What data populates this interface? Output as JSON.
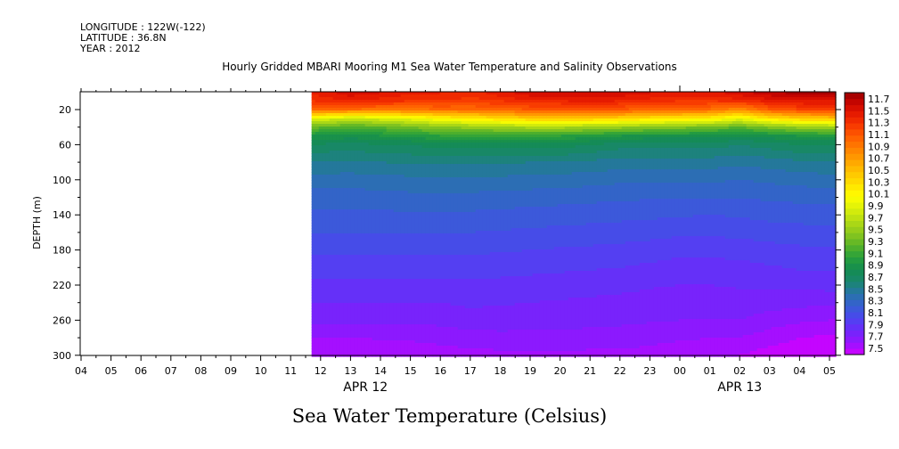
{
  "header": {
    "longitude": "LONGITUDE : 122W(-122)",
    "latitude": "LATITUDE : 36.8N",
    "year": "YEAR : 2012"
  },
  "title": "Hourly Gridded MBARI Mooring M1 Sea Water Temperature and Salinity Observations",
  "bottom_title": "Sea Water Temperature (Celsius)",
  "chart_data": {
    "type": "heatmap",
    "title": "Hourly Gridded MBARI Mooring M1 Sea Water Temperature and Salinity Observations",
    "colorbar_label": "Sea Water Temperature (Celsius)",
    "ylabel": "DEPTH (m)",
    "xlabel": "",
    "y_axis_reversed": true,
    "ylim": [
      300,
      2
    ],
    "y_ticks": [
      20,
      60,
      100,
      140,
      180,
      220,
      260,
      300
    ],
    "x_ticks": [
      "04",
      "05",
      "06",
      "07",
      "08",
      "09",
      "10",
      "11",
      "12",
      "13",
      "14",
      "15",
      "16",
      "17",
      "18",
      "19",
      "20",
      "21",
      "22",
      "23",
      "00",
      "01",
      "02",
      "03",
      "04",
      "05"
    ],
    "date_labels": [
      {
        "label": "APR 12",
        "at_tick": 9.5
      },
      {
        "label": "APR 13",
        "at_tick": 22
      }
    ],
    "data_start_hour_index": 7.7,
    "colorbar_levels": [
      7.5,
      7.6,
      7.7,
      7.8,
      7.9,
      8.0,
      8.1,
      8.2,
      8.3,
      8.4,
      8.5,
      8.6,
      8.7,
      8.8,
      8.9,
      9.0,
      9.1,
      9.2,
      9.3,
      9.4,
      9.5,
      9.6,
      9.7,
      9.8,
      9.9,
      10.0,
      10.1,
      10.2,
      10.3,
      10.4,
      10.5,
      10.6,
      10.7,
      10.8,
      10.9,
      11.0,
      11.1,
      11.2,
      11.3,
      11.4,
      11.5,
      11.6,
      11.7,
      11.8
    ],
    "colorbar_labels": [
      "11.7",
      "11.5",
      "11.3",
      "11.1",
      "10.9",
      "10.7",
      "10.5",
      "10.3",
      "10.1",
      "9.9",
      "9.7",
      "9.5",
      "9.3",
      "9.1",
      "8.9",
      "8.7",
      "8.5",
      "8.3",
      "8.1",
      "7.9",
      "7.7",
      "7.5"
    ],
    "depths": [
      2,
      10,
      20,
      30,
      40,
      50,
      60,
      80,
      100,
      120,
      140,
      160,
      180,
      200,
      220,
      240,
      260,
      280,
      300
    ],
    "hours": [
      7.7,
      9,
      10,
      11,
      12,
      13,
      14,
      15,
      16,
      17,
      18,
      19,
      20,
      21,
      22,
      23,
      24,
      25
    ],
    "temperatures": [
      [
        11.4,
        11.55,
        11.5,
        11.4,
        11.4,
        11.35,
        11.45,
        11.55,
        11.55,
        11.6,
        11.55,
        11.5,
        11.45,
        11.45,
        11.55,
        11.65,
        11.75,
        11.75
      ],
      [
        11.3,
        11.4,
        11.35,
        11.3,
        11.3,
        11.25,
        11.3,
        11.4,
        11.4,
        11.45,
        11.4,
        11.35,
        11.3,
        11.3,
        11.35,
        11.45,
        11.5,
        11.5
      ],
      [
        11.0,
        11.0,
        10.95,
        10.95,
        11.0,
        11.0,
        11.05,
        11.1,
        11.1,
        11.15,
        11.1,
        11.05,
        11.05,
        11.0,
        10.8,
        11.1,
        11.2,
        11.25
      ],
      [
        10.0,
        9.8,
        9.9,
        10.0,
        10.15,
        10.25,
        10.35,
        10.45,
        10.45,
        10.45,
        10.4,
        10.3,
        10.25,
        10.2,
        10.0,
        10.3,
        10.45,
        10.5
      ],
      [
        9.35,
        9.25,
        9.3,
        9.4,
        9.5,
        9.55,
        9.6,
        9.65,
        9.65,
        9.6,
        9.55,
        9.5,
        9.45,
        9.4,
        9.3,
        9.45,
        9.55,
        9.6
      ],
      [
        9.0,
        8.95,
        9.0,
        9.05,
        9.1,
        9.1,
        9.1,
        9.1,
        9.1,
        9.05,
        9.0,
        8.95,
        8.95,
        8.95,
        8.9,
        8.95,
        9.0,
        9.05
      ],
      [
        8.8,
        8.75,
        8.8,
        8.8,
        8.85,
        8.85,
        8.85,
        8.85,
        8.85,
        8.8,
        8.75,
        8.75,
        8.75,
        8.75,
        8.7,
        8.75,
        8.8,
        8.8
      ],
      [
        8.6,
        8.58,
        8.6,
        8.62,
        8.62,
        8.62,
        8.62,
        8.6,
        8.6,
        8.58,
        8.55,
        8.55,
        8.55,
        8.55,
        8.52,
        8.55,
        8.58,
        8.6
      ],
      [
        8.45,
        8.45,
        8.46,
        8.47,
        8.48,
        8.48,
        8.47,
        8.46,
        8.45,
        8.44,
        8.42,
        8.42,
        8.42,
        8.42,
        8.4,
        8.42,
        8.44,
        8.45
      ],
      [
        8.35,
        8.35,
        8.36,
        8.37,
        8.37,
        8.37,
        8.36,
        8.35,
        8.34,
        8.33,
        8.32,
        8.31,
        8.3,
        8.3,
        8.3,
        8.32,
        8.33,
        8.34
      ],
      [
        8.27,
        8.27,
        8.28,
        8.28,
        8.28,
        8.28,
        8.27,
        8.26,
        8.25,
        8.24,
        8.23,
        8.22,
        8.21,
        8.2,
        8.21,
        8.23,
        8.24,
        8.25
      ],
      [
        8.2,
        8.2,
        8.2,
        8.2,
        8.2,
        8.2,
        8.19,
        8.18,
        8.17,
        8.16,
        8.15,
        8.14,
        8.12,
        8.12,
        8.13,
        8.15,
        8.16,
        8.17
      ],
      [
        8.12,
        8.12,
        8.12,
        8.12,
        8.12,
        8.12,
        8.11,
        8.1,
        8.09,
        8.08,
        8.07,
        8.05,
        8.03,
        8.03,
        8.04,
        8.06,
        8.08,
        8.09
      ],
      [
        8.05,
        8.05,
        8.05,
        8.05,
        8.05,
        8.05,
        8.04,
        8.03,
        8.02,
        8.01,
        8.0,
        7.98,
        7.96,
        7.96,
        7.97,
        7.99,
        8.01,
        8.02
      ],
      [
        7.98,
        7.98,
        7.98,
        7.98,
        7.98,
        7.98,
        7.97,
        7.96,
        7.95,
        7.94,
        7.93,
        7.91,
        7.9,
        7.9,
        7.91,
        7.92,
        7.93,
        7.94
      ],
      [
        7.9,
        7.9,
        7.9,
        7.9,
        7.9,
        7.92,
        7.91,
        7.9,
        7.89,
        7.88,
        7.87,
        7.86,
        7.85,
        7.85,
        7.86,
        7.85,
        7.83,
        7.82
      ],
      [
        7.82,
        7.82,
        7.82,
        7.82,
        7.83,
        7.85,
        7.85,
        7.84,
        7.84,
        7.83,
        7.82,
        7.81,
        7.8,
        7.8,
        7.8,
        7.75,
        7.72,
        7.7
      ],
      [
        7.7,
        7.7,
        7.71,
        7.72,
        7.74,
        7.76,
        7.77,
        7.77,
        7.77,
        7.76,
        7.76,
        7.74,
        7.72,
        7.7,
        7.7,
        7.65,
        7.6,
        7.58
      ],
      [
        7.6,
        7.6,
        7.61,
        7.62,
        7.64,
        7.66,
        7.67,
        7.68,
        7.68,
        7.67,
        7.67,
        7.65,
        7.62,
        7.6,
        7.6,
        7.55,
        7.52,
        7.5
      ]
    ]
  }
}
